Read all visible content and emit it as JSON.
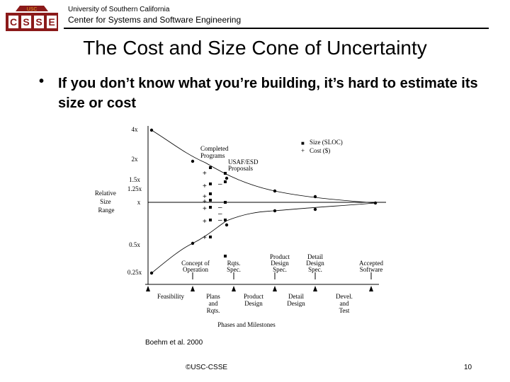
{
  "header": {
    "logo_text": "USC",
    "logo_letters": [
      "C",
      "S",
      "S",
      "E"
    ],
    "university": "University of Southern California",
    "center": "Center for Systems and Software Engineering"
  },
  "title": "The Cost and Size Cone of Uncertainty",
  "bullet": "If you don’t know what you’re building, it’s hard to estimate its size or cost",
  "chart_data": {
    "type": "line",
    "ylabel": "Relative Size Range",
    "xlabel": "Phases and Milestones",
    "y_ticks": [
      "4x",
      "2x",
      "1.5x",
      "1.25x",
      "x",
      "0.5x",
      "0.25x"
    ],
    "legend": [
      {
        "marker": "■",
        "label": "Size (SLOC)"
      },
      {
        "marker": "+",
        "label": "Cost ($)"
      }
    ],
    "annotations": [
      "Completed Programs",
      "USAF/ESD Proposals"
    ],
    "milestones_top": [
      [
        "Concept of",
        "Operation"
      ],
      [
        "Rqts.",
        "Spec."
      ],
      [
        "Product",
        "Design",
        "Spec."
      ],
      [
        "Detail",
        "Design",
        "Spec."
      ],
      [
        "Accepted",
        "Software"
      ]
    ],
    "phases_bottom": [
      [
        "Feasibility"
      ],
      [
        "Plans",
        "and",
        "Rqts."
      ],
      [
        "Product",
        "Design"
      ],
      [
        "Detail",
        "Design"
      ],
      [
        "Devel.",
        "and",
        "Test"
      ]
    ],
    "upper_curve_y": [
      4,
      3,
      2,
      1.5,
      1.25,
      1.15,
      1.1,
      1
    ],
    "lower_curve_y": [
      0.25,
      0.33,
      0.5,
      0.67,
      0.8,
      0.87,
      0.9,
      1
    ]
  },
  "citation": "Boehm et al. 2000",
  "footer": {
    "copyright": "©USC-CSSE",
    "page": "10"
  },
  "colors": {
    "logo_fill": "#8b1a1a",
    "logo_gold": "#e0a020"
  }
}
